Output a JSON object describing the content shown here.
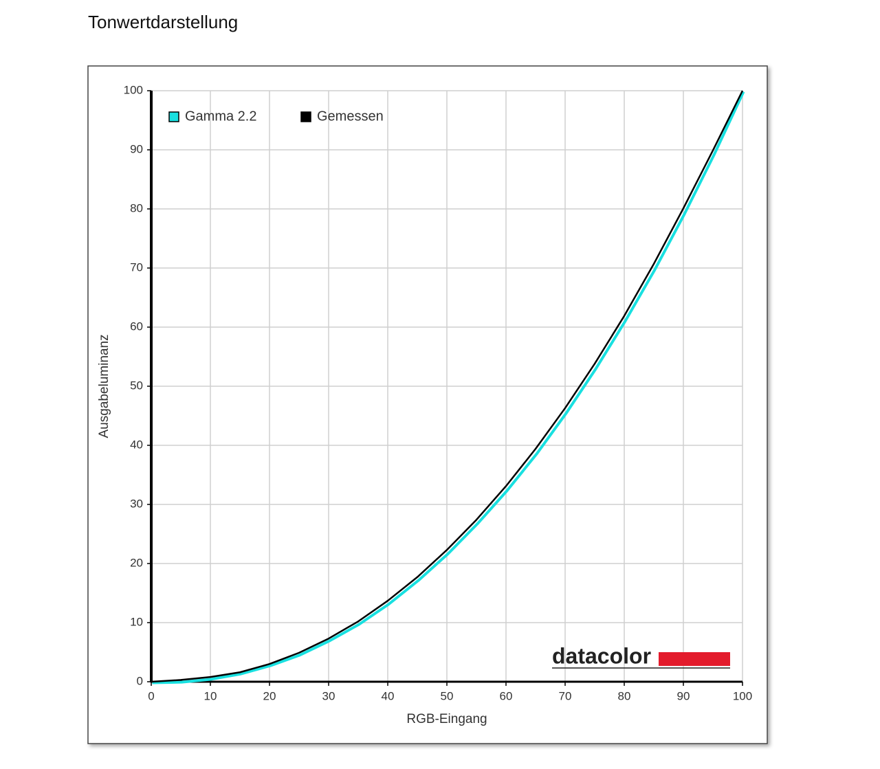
{
  "page": {
    "heading": "Tonwertdarstellung"
  },
  "chart_data": {
    "type": "line",
    "x_label": "RGB-Eingang",
    "y_label": "Ausgabeluminanz",
    "logo": "datacolor",
    "x": [
      0,
      5,
      10,
      15,
      20,
      25,
      30,
      35,
      40,
      45,
      50,
      55,
      60,
      65,
      70,
      75,
      80,
      85,
      90,
      95,
      100
    ],
    "series": [
      {
        "name": "Gamma 2.2",
        "color": "#19e0e0",
        "values": [
          0,
          0.1,
          0.6,
          1.5,
          2.9,
          4.7,
          7.1,
          9.9,
          13.3,
          17.3,
          21.8,
          26.9,
          32.5,
          38.7,
          45.6,
          53.1,
          61.2,
          69.9,
          79.3,
          89.3,
          100
        ]
      },
      {
        "name": "Gemessen",
        "color": "#000000",
        "values": [
          0,
          0.3,
          0.8,
          1.6,
          3.0,
          4.9,
          7.3,
          10.2,
          13.7,
          17.7,
          22.3,
          27.4,
          33.1,
          39.4,
          46.3,
          53.8,
          61.9,
          70.7,
          80.1,
          89.9,
          100
        ]
      }
    ],
    "xlim": [
      0,
      100
    ],
    "ylim": [
      0,
      100
    ],
    "xticks": [
      0,
      10,
      20,
      30,
      40,
      50,
      60,
      70,
      80,
      90,
      100
    ],
    "yticks": [
      0,
      10,
      20,
      30,
      40,
      50,
      60,
      70,
      80,
      90,
      100
    ],
    "grid": true,
    "legend": "top-left"
  }
}
